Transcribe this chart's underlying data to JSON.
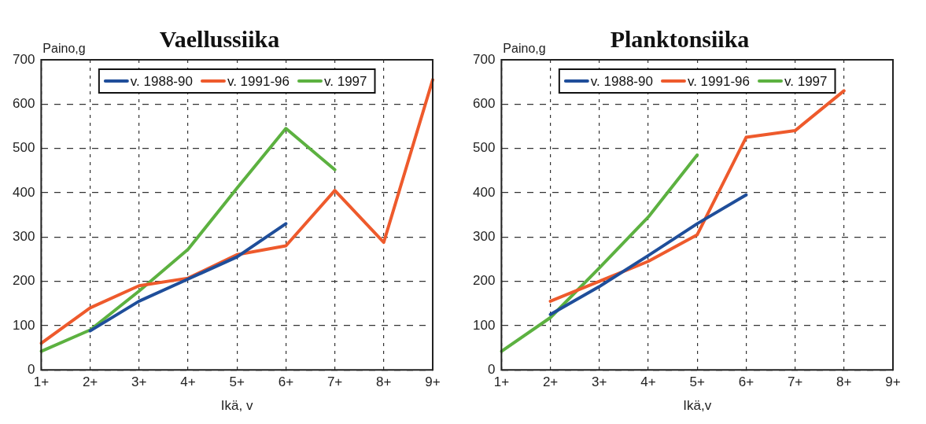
{
  "chart_data": [
    {
      "type": "line",
      "title": "Vaellussiika",
      "xlabel": "Ikä, v",
      "ylabel": "Paino,g",
      "categories": [
        "1+",
        "2+",
        "3+",
        "4+",
        "5+",
        "6+",
        "7+",
        "8+",
        "9+"
      ],
      "series": [
        {
          "name": "v. 1988-90",
          "color": "#1f4e9a",
          "values": [
            null,
            88,
            155,
            205,
            255,
            330,
            null,
            null,
            null
          ]
        },
        {
          "name": "v. 1991-96",
          "color": "#ee5a2c",
          "values": [
            60,
            140,
            190,
            207,
            260,
            280,
            405,
            288,
            655
          ]
        },
        {
          "name": "v. 1997",
          "color": "#5cb140",
          "values": [
            42,
            90,
            178,
            272,
            410,
            545,
            452,
            null,
            null
          ]
        }
      ],
      "ylim": [
        0,
        700
      ],
      "yticks": [
        0,
        100,
        200,
        300,
        400,
        500,
        600,
        700
      ],
      "grid": true,
      "legend": "top",
      "marker": "none",
      "line_style": "solid"
    },
    {
      "type": "line",
      "title": "Planktonsiika",
      "xlabel": "Ikä,v",
      "ylabel": "Paino,g",
      "categories": [
        "1+",
        "2+",
        "3+",
        "4+",
        "5+",
        "6+",
        "7+",
        "8+",
        "9+"
      ],
      "series": [
        {
          "name": "v. 1988-90",
          "color": "#1f4e9a",
          "values": [
            null,
            125,
            188,
            258,
            330,
            395,
            null,
            null,
            null
          ]
        },
        {
          "name": "v. 1991-96",
          "color": "#ee5a2c",
          "values": [
            null,
            155,
            200,
            245,
            305,
            525,
            540,
            630,
            null
          ]
        },
        {
          "name": "v. 1997",
          "color": "#5cb140",
          "values": [
            42,
            118,
            230,
            345,
            485,
            null,
            null,
            null,
            null
          ]
        }
      ],
      "ylim": [
        0,
        700
      ],
      "yticks": [
        0,
        100,
        200,
        300,
        400,
        500,
        600,
        700
      ],
      "grid": true,
      "legend": "top",
      "marker": "none",
      "line_style": "solid"
    }
  ]
}
